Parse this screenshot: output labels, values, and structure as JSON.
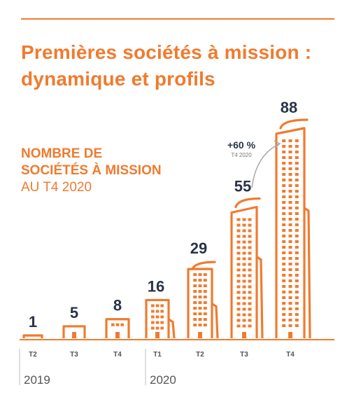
{
  "header": {
    "title_line1": "Premières sociétés à mission :",
    "title_line2": "dynamique et profils"
  },
  "subtitle": {
    "line1": "NOMBRE DE",
    "line2": "SOCIÉTÉS À MISSION",
    "line3": "AU T4 2020"
  },
  "colors": {
    "accent": "#ef7b2f",
    "value_text": "#2a3447",
    "axis_text": "#555555",
    "growth_arrow": "#a8a8a8"
  },
  "chart_data": {
    "type": "bar",
    "categories": [
      "T2",
      "T3",
      "T4",
      "T1",
      "T2",
      "T3",
      "T4"
    ],
    "years": [
      {
        "label": "2019",
        "quarters": [
          "T2",
          "T3",
          "T4"
        ]
      },
      {
        "label": "2020",
        "quarters": [
          "T1",
          "T2",
          "T3",
          "T4"
        ]
      }
    ],
    "values": [
      1,
      5,
      8,
      16,
      29,
      55,
      88
    ],
    "title": "NOMBRE DE SOCIÉTÉS À MISSION AU T4 2020",
    "annotation": {
      "text": "+60 %",
      "subtext": "T4 2020"
    },
    "style": "building pictogram bars"
  }
}
